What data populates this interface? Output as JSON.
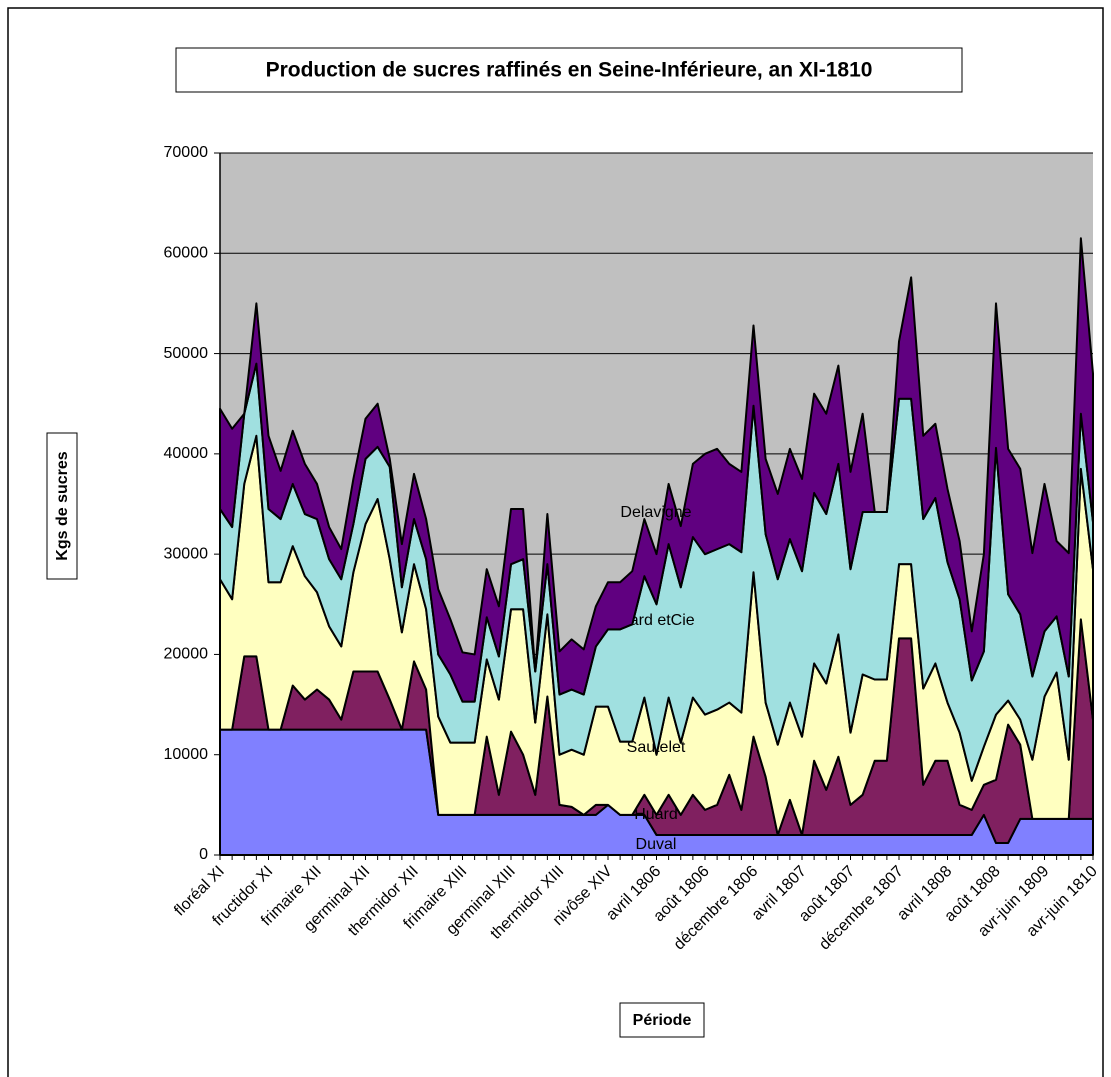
{
  "chart_data": {
    "type": "stacked_area",
    "title": "Production de sucres raffinés en Seine-Inférieure, an XI-1810",
    "x_label": "Période",
    "y_label": "Kgs de sucres",
    "categories": [
      "floréal XI",
      null,
      null,
      null,
      "fructidor XI",
      null,
      null,
      null,
      "frimaire XII",
      null,
      null,
      null,
      "germinal XII",
      null,
      null,
      null,
      "thermidor XII",
      null,
      null,
      null,
      "frimaire XIII",
      null,
      null,
      null,
      "germinal XIII",
      null,
      null,
      null,
      "thermidor XIII",
      null,
      null,
      null,
      "nivôse XIV",
      null,
      null,
      null,
      "avril 1806",
      null,
      null,
      null,
      "août 1806",
      null,
      null,
      null,
      "décembre 1806",
      null,
      null,
      null,
      "avril 1807",
      null,
      null,
      null,
      "août 1807",
      null,
      null,
      null,
      "décembre 1807",
      null,
      null,
      null,
      "avril 1808",
      null,
      null,
      null,
      "août 1808",
      null,
      null,
      null,
      "avr-juin 1809",
      null,
      null,
      null,
      "avr-juin 1810"
    ],
    "ylim": [
      0,
      70000
    ],
    "yticks": [
      0,
      10000,
      20000,
      30000,
      40000,
      50000,
      60000,
      70000
    ],
    "grid": true,
    "series": [
      {
        "name": "Duval",
        "color": "#8080ff",
        "values": [
          12500,
          12500,
          12500,
          12500,
          12500,
          12500,
          12500,
          12500,
          12500,
          12500,
          12500,
          12500,
          12500,
          12500,
          12500,
          12500,
          12500,
          12500,
          4000,
          4000,
          4000,
          4000,
          4000,
          4000,
          4000,
          4000,
          4000,
          4000,
          4000,
          4000,
          4000,
          4000,
          5000,
          4000,
          4000,
          4000,
          2000,
          2000,
          2000,
          2000,
          2000,
          2000,
          2000,
          2000,
          2000,
          2000,
          2000,
          2000,
          2000,
          2000,
          2000,
          2000,
          2000,
          2000,
          2000,
          2000,
          2000,
          2000,
          2000,
          2000,
          2000,
          2000,
          2000,
          4000,
          1200,
          1200,
          3600,
          3600,
          3600,
          3600,
          3600,
          3600,
          3600
        ]
      },
      {
        "name": "Huard",
        "color": "#802060",
        "values": [
          0,
          0,
          7300,
          7300,
          0,
          0,
          4400,
          3000,
          4000,
          3000,
          1000,
          5800,
          5800,
          5800,
          3000,
          0,
          6800,
          4000,
          0,
          0,
          0,
          0,
          7800,
          2000,
          8300,
          6000,
          2000,
          11800,
          1000,
          800,
          0,
          1000,
          0,
          0,
          0,
          2000,
          2000,
          4000,
          2000,
          4000,
          2500,
          3000,
          6000,
          2500,
          9800,
          5800,
          0,
          3500,
          0,
          7400,
          4500,
          7800,
          3000,
          4000,
          7400,
          7400,
          19600,
          19600,
          5000,
          7400,
          7400,
          3000,
          2500,
          3000,
          6300,
          11800,
          7400,
          0,
          0,
          0,
          0,
          19900,
          9900
        ]
      },
      {
        "name": "Sautelet",
        "color": "#ffffc0",
        "values": [
          15000,
          13000,
          17200,
          22000,
          14700,
          14700,
          13900,
          12300,
          9700,
          7300,
          7300,
          9900,
          14700,
          17200,
          14000,
          9700,
          9700,
          8000,
          9800,
          7200,
          7200,
          7200,
          7700,
          9500,
          12200,
          14500,
          7200,
          8200,
          5000,
          5700,
          6000,
          9800,
          9800,
          7300,
          7300,
          9700,
          6000,
          9700,
          7200,
          9700,
          9500,
          9500,
          7200,
          9700,
          16400,
          7400,
          9000,
          9700,
          9800,
          9700,
          10600,
          12200,
          7200,
          12000,
          8100,
          8100,
          7400,
          7400,
          9600,
          9700,
          5800,
          7200,
          2900,
          3800,
          6500,
          2400,
          2500,
          5900,
          12200,
          14600,
          5900,
          15000,
          15000
        ]
      },
      {
        "name": "Liard etCie",
        "color": "#a0e0e0",
        "values": [
          7000,
          7200,
          7000,
          7200,
          7300,
          6300,
          6200,
          6200,
          7300,
          6700,
          6700,
          4800,
          6500,
          5200,
          9200,
          4500,
          4500,
          5000,
          6200,
          6800,
          4100,
          4100,
          4200,
          4300,
          4500,
          5000,
          5100,
          5000,
          6000,
          6000,
          6000,
          6000,
          7700,
          11200,
          11700,
          12100,
          15000,
          15300,
          15500,
          16000,
          16000,
          16000,
          15800,
          16000,
          16600,
          16800,
          16500,
          16300,
          16500,
          17000,
          16900,
          17000,
          16300,
          16200,
          16700,
          16700,
          16500,
          16500,
          16900,
          16500,
          14000,
          13300,
          10000,
          9500,
          26600,
          10600,
          10500,
          8300,
          6500,
          5600,
          8300,
          5500,
          4700
        ]
      },
      {
        "name": "Delavigne",
        "color": "#600080",
        "values": [
          10000,
          9800,
          0,
          6000,
          7300,
          4800,
          5300,
          5000,
          3500,
          3200,
          3000,
          4500,
          4000,
          4300,
          800,
          4300,
          4500,
          4000,
          6500,
          5500,
          4900,
          4700,
          4800,
          5000,
          5500,
          5000,
          0,
          5000,
          4300,
          5000,
          4500,
          4000,
          4700,
          4700,
          5300,
          5700,
          5000,
          6000,
          6100,
          7300,
          10000,
          10000,
          8000,
          8000,
          8000,
          7500,
          8500,
          9000,
          9200,
          9900,
          10000,
          9800,
          9700,
          9800,
          0,
          0,
          5700,
          12100,
          8300,
          7400,
          7300,
          5800,
          4900,
          9700,
          14400,
          14500,
          14500,
          12300,
          14700,
          7500,
          12300,
          17500,
          14800
        ]
      }
    ]
  }
}
